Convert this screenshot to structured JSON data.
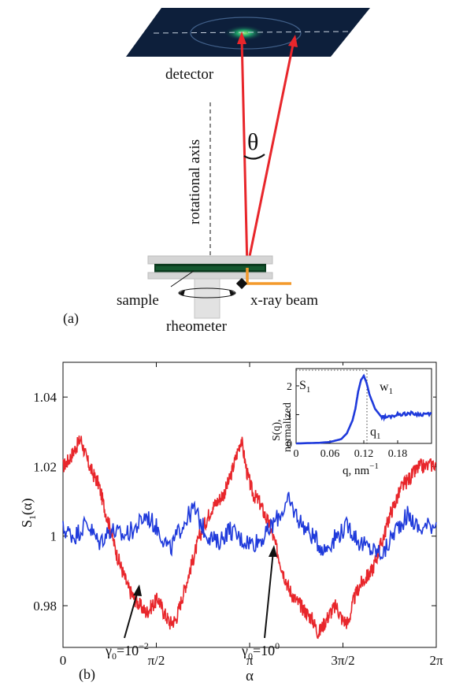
{
  "figure_a": {
    "panel_label": "(a)",
    "detector_label": "detector",
    "axis_label": "rotational axis",
    "angle_label": "θ",
    "sample_label": "sample",
    "beam_label": "x-ray beam",
    "rheometer_label": "rheometer",
    "colors": {
      "ray": "#e8262b",
      "beam": "#f39a2c",
      "detector": "#0d1f3b",
      "sample": "#0b3b1e"
    }
  },
  "figure_b": {
    "panel_label": "(b)",
    "ylabel_main": "S",
    "ylabel_sub": "1",
    "ylabel_tail": "(α)",
    "xlabel": "α",
    "xticks": [
      "0",
      "π/2",
      "π",
      "3π/2",
      "2π"
    ],
    "yticks": [
      "0.98",
      "1",
      "1.02",
      "1.04"
    ],
    "annot_red": {
      "base": "γ",
      "sub": "0",
      "mid": "=10",
      "sup": "−2"
    },
    "annot_blue": {
      "base": "γ",
      "sub": "0",
      "mid": "=10",
      "sup": "0"
    },
    "inset": {
      "ylabel_line1": "S(q),",
      "ylabel_line2": "normalized",
      "xlabel": "q, nm",
      "xlabel_sup": "−1",
      "xticks": [
        "0",
        "0.06",
        "0.12",
        "0.18"
      ],
      "yticks": [
        "0",
        "1",
        "2"
      ],
      "s1_label": "S",
      "s1_sub": "1",
      "w1_label": "w",
      "w1_sub": "1",
      "q1_label": "q",
      "q1_sub": "1"
    }
  },
  "chart_data": [
    {
      "type": "line",
      "xlabel": "α",
      "ylabel": "S1(α)",
      "xlim": [
        0,
        6.2832
      ],
      "ylim": [
        0.968,
        1.05
      ],
      "series": [
        {
          "name": "γ0=10−2",
          "color": "#e8262b",
          "x": [
            0,
            0.1,
            0.2,
            0.3,
            0.4,
            0.5,
            0.6,
            0.7,
            0.8,
            0.9,
            1.0,
            1.1,
            1.2,
            1.3,
            1.4,
            1.5,
            1.6,
            1.7,
            1.8,
            1.9,
            2.0,
            2.1,
            2.2,
            2.3,
            2.4,
            2.5,
            2.6,
            2.7,
            2.8,
            2.9,
            3.0,
            3.1,
            3.2,
            3.3,
            3.4,
            3.5,
            3.6,
            3.7,
            3.8,
            3.9,
            4.0,
            4.1,
            4.2,
            4.3,
            4.4,
            4.5,
            4.6,
            4.7,
            4.8,
            4.9,
            5.0,
            5.1,
            5.2,
            5.3,
            5.4,
            5.5,
            5.6,
            5.7,
            5.8,
            5.9,
            6.0,
            6.1,
            6.2832
          ],
          "values": [
            1.02,
            1.022,
            1.025,
            1.028,
            1.022,
            1.018,
            1.015,
            1.008,
            1.002,
            0.995,
            0.99,
            0.985,
            0.982,
            0.98,
            0.978,
            0.98,
            0.982,
            0.978,
            0.975,
            0.976,
            0.982,
            0.988,
            0.994,
            1.0,
            1.004,
            1.008,
            1.01,
            1.012,
            1.016,
            1.022,
            1.028,
            1.018,
            1.012,
            1.01,
            1.006,
            1.002,
            0.996,
            0.99,
            0.985,
            0.982,
            0.98,
            0.978,
            0.976,
            0.972,
            0.975,
            0.978,
            0.98,
            0.976,
            0.975,
            0.982,
            0.986,
            0.988,
            0.99,
            0.995,
            1.0,
            1.006,
            1.01,
            1.014,
            1.016,
            1.018,
            1.02,
            1.02,
            1.021
          ]
        },
        {
          "name": "γ0=100",
          "color": "#1f3adb",
          "x": [
            0,
            0.2,
            0.4,
            0.6,
            0.8,
            1.0,
            1.2,
            1.4,
            1.6,
            1.8,
            2.0,
            2.2,
            2.4,
            2.6,
            2.8,
            3.0,
            3.2,
            3.4,
            3.6,
            3.8,
            4.0,
            4.2,
            4.4,
            4.6,
            4.8,
            5.0,
            5.2,
            5.4,
            5.6,
            5.8,
            6.0,
            6.2832
          ],
          "values": [
            1.002,
            1.0,
            1.004,
            0.998,
            1.002,
            1.0,
            1.002,
            1.006,
            1.002,
            0.996,
            1.003,
            1.008,
            1.001,
            0.998,
            1.002,
            0.999,
            0.998,
            1.0,
            1.005,
            1.01,
            1.004,
            1.0,
            0.996,
            1.0,
            1.003,
            0.998,
            0.996,
            0.995,
            1.002,
            1.006,
            1.002,
            1.004
          ]
        }
      ]
    },
    {
      "type": "line",
      "title": "",
      "xlabel": "q, nm−1",
      "ylabel": "S(q), normalized",
      "xlim": [
        0,
        0.24
      ],
      "ylim": [
        0,
        2.6
      ],
      "series": [
        {
          "name": "",
          "color": "#1f3adb",
          "x": [
            0,
            0.04,
            0.06,
            0.08,
            0.09,
            0.1,
            0.105,
            0.11,
            0.115,
            0.12,
            0.125,
            0.13,
            0.14,
            0.15,
            0.16,
            0.18,
            0.2,
            0.22,
            0.24
          ],
          "values": [
            0,
            0.02,
            0.05,
            0.15,
            0.35,
            0.8,
            1.2,
            1.8,
            2.2,
            2.35,
            2.1,
            1.7,
            1.2,
            0.95,
            0.9,
            1.0,
            1.05,
            1.0,
            1.05
          ]
        }
      ]
    }
  ]
}
